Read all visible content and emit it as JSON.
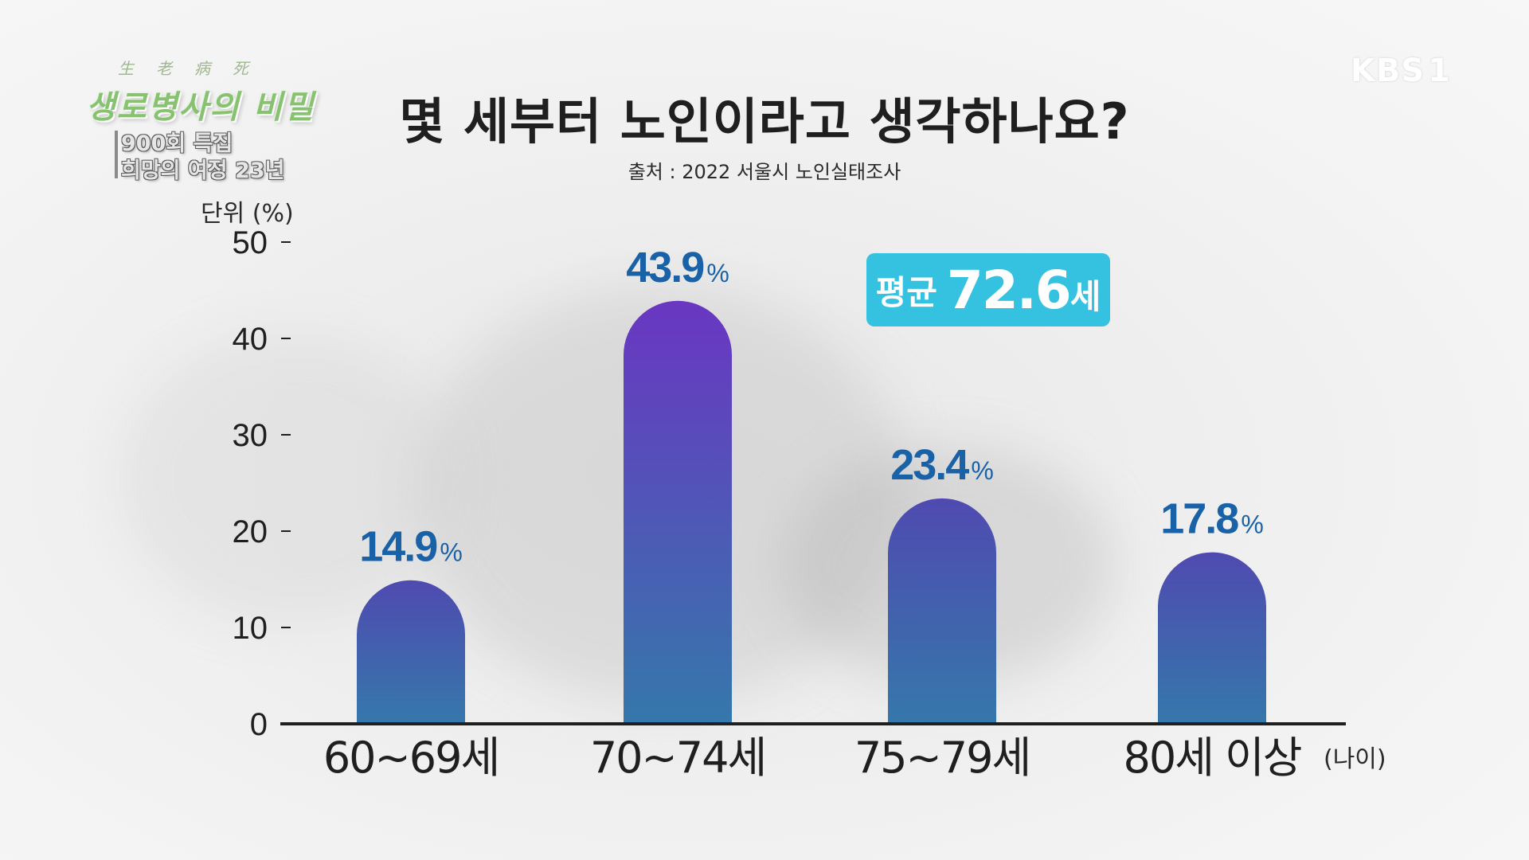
{
  "show": {
    "hanja": "生老病死",
    "title": "생로병사의 비밀",
    "subtitle_1": "900회 특집",
    "subtitle_2": "희망의 여정 23년"
  },
  "channel": {
    "logo": "KBS",
    "number": "1"
  },
  "average": {
    "label": "평균",
    "value": "72.6",
    "unit": "세"
  },
  "colors": {
    "bar_top_tall": "#6a36c2",
    "bar_top": "#4f4ab0",
    "bar_bottom": "#3578ab",
    "value_label": "#1a62a8",
    "badge": "#34c2e0"
  },
  "chart_data": {
    "type": "bar",
    "title": "몇 세부터 노인이라고 생각하나요?",
    "source": "출처 : 2022 서울시 노인실태조사",
    "ylabel": "단위 (%)",
    "xlabel": "(나이)",
    "ylim": [
      0,
      50
    ],
    "yticks": [
      0,
      10,
      20,
      30,
      40,
      50
    ],
    "categories": [
      "60~69세",
      "70~74세",
      "75~79세",
      "80세 이상"
    ],
    "values": [
      14.9,
      43.9,
      23.4,
      17.8
    ],
    "value_labels": [
      "14.9",
      "43.9",
      "23.4",
      "17.8"
    ],
    "value_suffix": "%",
    "grid": false,
    "legend": "none"
  }
}
